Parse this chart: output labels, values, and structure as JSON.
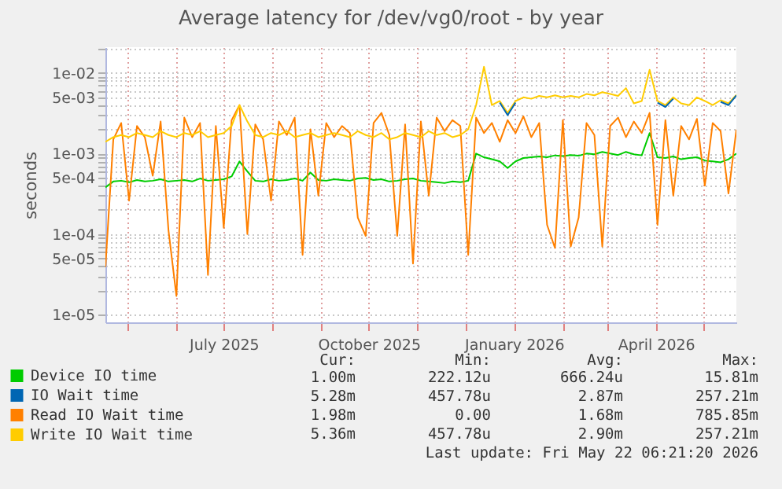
{
  "chart_data": {
    "type": "line",
    "title": "Average latency for /dev/vg0/root - by year",
    "ylabel": "seconds",
    "log": true,
    "grid": true,
    "legend": "bottom",
    "marker": "none",
    "line_style": "solid",
    "xlim": [
      "2025-04-17",
      "2026-05-22"
    ],
    "ylim": [
      8e-06,
      0.021
    ],
    "xticks": [
      {
        "value": "2025-05-01",
        "label": null
      },
      {
        "value": "2025-06-01",
        "label": null
      },
      {
        "value": "2025-07-01",
        "label": "July 2025"
      },
      {
        "value": "2025-08-01",
        "label": null
      },
      {
        "value": "2025-09-01",
        "label": null
      },
      {
        "value": "2025-10-01",
        "label": "October 2025"
      },
      {
        "value": "2025-11-01",
        "label": null
      },
      {
        "value": "2025-12-01",
        "label": null
      },
      {
        "value": "2026-01-01",
        "label": "January 2026"
      },
      {
        "value": "2026-02-01",
        "label": null
      },
      {
        "value": "2026-03-01",
        "label": null
      },
      {
        "value": "2026-04-01",
        "label": "April 2026"
      },
      {
        "value": "2026-05-01",
        "label": null
      }
    ],
    "yticks": [
      {
        "value": 1e-05,
        "label": "1e-05"
      },
      {
        "value": 2e-05,
        "label": null
      },
      {
        "value": 3e-05,
        "label": null
      },
      {
        "value": 4e-05,
        "label": null
      },
      {
        "value": 5e-05,
        "label": "5e-05"
      },
      {
        "value": 6e-05,
        "label": null
      },
      {
        "value": 7e-05,
        "label": null
      },
      {
        "value": 8e-05,
        "label": null
      },
      {
        "value": 9e-05,
        "label": null
      },
      {
        "value": 0.0001,
        "label": "1e-04"
      },
      {
        "value": 0.0002,
        "label": null
      },
      {
        "value": 0.0003,
        "label": null
      },
      {
        "value": 0.0004,
        "label": null
      },
      {
        "value": 0.0005,
        "label": "5e-04"
      },
      {
        "value": 0.0006,
        "label": null
      },
      {
        "value": 0.0007,
        "label": null
      },
      {
        "value": 0.0008,
        "label": null
      },
      {
        "value": 0.0009,
        "label": null
      },
      {
        "value": 0.001,
        "label": "1e-03"
      },
      {
        "value": 0.002,
        "label": null
      },
      {
        "value": 0.003,
        "label": null
      },
      {
        "value": 0.004,
        "label": null
      },
      {
        "value": 0.005,
        "label": "5e-03"
      },
      {
        "value": 0.006,
        "label": null
      },
      {
        "value": 0.007,
        "label": null
      },
      {
        "value": 0.008,
        "label": null
      },
      {
        "value": 0.009,
        "label": null
      },
      {
        "value": 0.01,
        "label": "1e-02"
      },
      {
        "value": 0.02,
        "label": null
      }
    ],
    "x": [
      "2025-04-17",
      "2025-04-22",
      "2025-04-27",
      "2025-05-02",
      "2025-05-07",
      "2025-05-12",
      "2025-05-17",
      "2025-05-22",
      "2025-05-27",
      "2025-06-01",
      "2025-06-06",
      "2025-06-11",
      "2025-06-16",
      "2025-06-21",
      "2025-06-26",
      "2025-07-01",
      "2025-07-06",
      "2025-07-11",
      "2025-07-16",
      "2025-07-21",
      "2025-07-26",
      "2025-07-31",
      "2025-08-05",
      "2025-08-10",
      "2025-08-15",
      "2025-08-20",
      "2025-08-25",
      "2025-08-30",
      "2025-09-04",
      "2025-09-09",
      "2025-09-14",
      "2025-09-19",
      "2025-09-24",
      "2025-09-29",
      "2025-10-04",
      "2025-10-09",
      "2025-10-14",
      "2025-10-19",
      "2025-10-24",
      "2025-10-29",
      "2025-11-03",
      "2025-11-08",
      "2025-11-13",
      "2025-11-18",
      "2025-11-23",
      "2025-11-28",
      "2025-12-03",
      "2025-12-08",
      "2025-12-13",
      "2025-12-18",
      "2025-12-23",
      "2025-12-28",
      "2026-01-02",
      "2026-01-07",
      "2026-01-12",
      "2026-01-17",
      "2026-01-22",
      "2026-01-27",
      "2026-02-01",
      "2026-02-06",
      "2026-02-11",
      "2026-02-16",
      "2026-02-21",
      "2026-02-26",
      "2026-03-03",
      "2026-03-08",
      "2026-03-13",
      "2026-03-18",
      "2026-03-23",
      "2026-03-28",
      "2026-04-02",
      "2026-04-07",
      "2026-04-12",
      "2026-04-17",
      "2026-04-22",
      "2026-04-27",
      "2026-05-02",
      "2026-05-07",
      "2026-05-12",
      "2026-05-17",
      "2026-05-22"
    ],
    "series": [
      {
        "name": "Device IO time",
        "color": "#00cc00",
        "values": [
          0.00038,
          0.00045,
          0.00046,
          0.00044,
          0.00047,
          0.00045,
          0.00046,
          0.00048,
          0.00045,
          0.00046,
          0.00047,
          0.00045,
          0.00049,
          0.00046,
          0.00047,
          0.00048,
          0.00052,
          0.0008,
          0.0006,
          0.00046,
          0.00045,
          0.00048,
          0.00046,
          0.00047,
          0.00049,
          0.00046,
          0.00058,
          0.00047,
          0.00046,
          0.00048,
          0.00047,
          0.00046,
          0.00049,
          0.0005,
          0.00047,
          0.00048,
          0.00045,
          0.00046,
          0.00048,
          0.00049,
          0.00046,
          0.00045,
          0.00044,
          0.00043,
          0.00045,
          0.00044,
          0.00046,
          0.001,
          0.0009,
          0.00085,
          0.0008,
          0.00066,
          0.0008,
          0.00088,
          0.0009,
          0.00092,
          0.0009,
          0.00095,
          0.00093,
          0.00096,
          0.00094,
          0.001,
          0.00098,
          0.00105,
          0.001,
          0.00096,
          0.00105,
          0.00098,
          0.00095,
          0.0018,
          0.0009,
          0.00088,
          0.00092,
          0.00085,
          0.00088,
          0.0009,
          0.00082,
          0.0008,
          0.00078,
          0.00085,
          0.001
        ]
      },
      {
        "name": "IO Wait time",
        "color": "#0066b3",
        "values": [
          null,
          null,
          null,
          null,
          null,
          null,
          null,
          null,
          null,
          null,
          null,
          null,
          null,
          null,
          null,
          null,
          null,
          null,
          null,
          null,
          null,
          null,
          null,
          null,
          null,
          null,
          null,
          null,
          null,
          null,
          null,
          null,
          null,
          null,
          null,
          null,
          null,
          null,
          null,
          null,
          null,
          null,
          null,
          null,
          null,
          null,
          null,
          null,
          null,
          null,
          0.0043,
          0.003,
          0.0043,
          null,
          null,
          null,
          null,
          null,
          null,
          null,
          null,
          null,
          null,
          null,
          null,
          null,
          null,
          null,
          null,
          null,
          0.0043,
          0.0038,
          0.0048,
          null,
          null,
          null,
          null,
          null,
          0.0044,
          0.004,
          0.00528
        ]
      },
      {
        "name": "Read IO Wait time",
        "color": "#ff8000",
        "values": [
          3.9e-05,
          0.0015,
          0.0024,
          0.00026,
          0.0022,
          0.0016,
          0.00053,
          0.0025,
          0.00011,
          1.7e-05,
          0.0028,
          0.0016,
          0.0024,
          3.1e-05,
          0.0022,
          0.00012,
          0.0026,
          0.004,
          0.0001,
          0.0023,
          0.0015,
          0.00026,
          0.0025,
          0.0017,
          0.0028,
          5.5e-05,
          0.002,
          0.0003,
          0.0024,
          0.0016,
          0.0022,
          0.0018,
          0.00016,
          9.5e-05,
          0.0024,
          0.0032,
          0.0017,
          9.5e-05,
          0.0023,
          4.3e-05,
          0.0025,
          0.0003,
          0.0028,
          0.0019,
          0.0026,
          0.0022,
          5.5e-05,
          0.0028,
          0.0018,
          0.0024,
          0.0014,
          0.0026,
          0.0018,
          0.0029,
          0.0016,
          0.0024,
          0.00013,
          6.7e-05,
          0.0026,
          7e-05,
          0.00016,
          0.0024,
          0.0017,
          7e-05,
          0.0022,
          0.0028,
          0.0016,
          0.0025,
          0.0018,
          0.0032,
          0.00013,
          0.0026,
          0.0003,
          0.0022,
          0.0015,
          0.0027,
          0.0004,
          0.0024,
          0.0019,
          0.00032,
          0.00198
        ]
      },
      {
        "name": "Write IO Wait time",
        "color": "#ffcc00",
        "values": [
          0.0014,
          0.0016,
          0.0017,
          0.0016,
          0.0018,
          0.0017,
          0.0016,
          0.0019,
          0.0017,
          0.0016,
          0.0018,
          0.0017,
          0.0019,
          0.0016,
          0.0017,
          0.0018,
          0.0022,
          0.004,
          0.0025,
          0.0017,
          0.0016,
          0.0018,
          0.0017,
          0.0019,
          0.0016,
          0.0017,
          0.0018,
          0.0016,
          0.0017,
          0.0018,
          0.0017,
          0.0016,
          0.0019,
          0.0017,
          0.0016,
          0.0018,
          0.0015,
          0.0016,
          0.0018,
          0.0017,
          0.0016,
          0.0019,
          0.0017,
          0.0018,
          0.0016,
          0.0017,
          0.002,
          0.004,
          0.012,
          0.004,
          0.0045,
          0.0032,
          0.0045,
          0.005,
          0.0048,
          0.0052,
          0.005,
          0.0053,
          0.005,
          0.0052,
          0.005,
          0.0055,
          0.0053,
          0.0058,
          0.0055,
          0.0052,
          0.0065,
          0.0042,
          0.0045,
          0.011,
          0.0045,
          0.004,
          0.005,
          0.0042,
          0.004,
          0.005,
          0.0045,
          0.004,
          0.0046,
          0.0042,
          0.00536
        ]
      }
    ],
    "annotations": [
      "Cur:",
      "Min:",
      "Avg:",
      "Max:",
      "1.00m",
      "222.12u",
      "666.24u",
      "15.81m",
      "5.28m",
      "457.78u",
      "2.87m",
      "257.21m",
      "1.98m",
      "0.00",
      "1.68m",
      "785.85m",
      "5.36m",
      "457.78u",
      "2.90m",
      "257.21m",
      "Last update: Fri May 22 06:21:20 2026"
    ]
  }
}
